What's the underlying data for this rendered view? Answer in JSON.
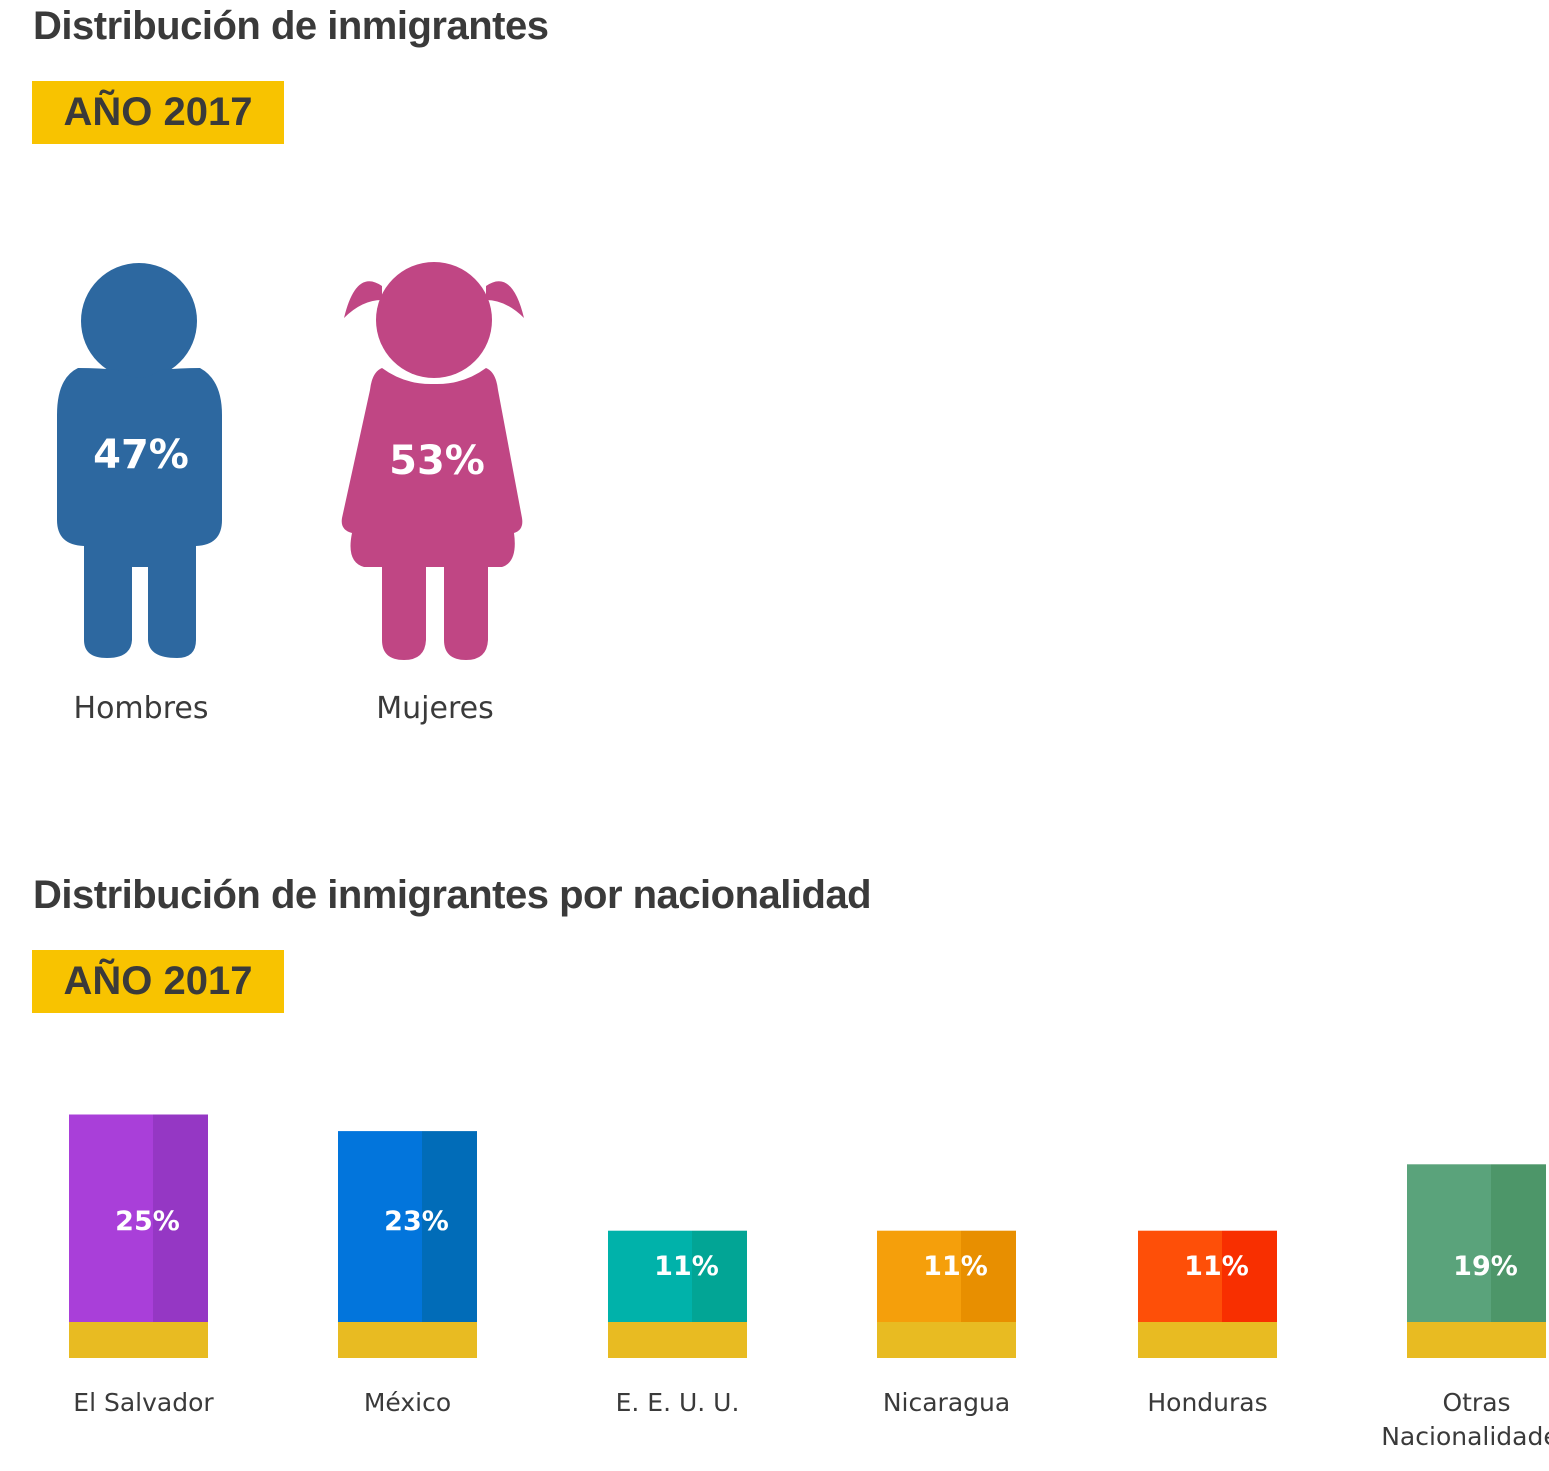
{
  "section1": {
    "title": "Distribución de inmigrantes",
    "year_badge": "AÑO 2017"
  },
  "section2": {
    "title": "Distribución de inmigrantes por nacionalidad",
    "year_badge": "AÑO 2017"
  },
  "chart_data": [
    {
      "type": "pictogram",
      "title": "Distribución de inmigrantes",
      "categories": [
        "Hombres",
        "Mujeres"
      ],
      "values": [
        47,
        53
      ],
      "labels": [
        "47%",
        "53%"
      ],
      "icons": [
        "boy-figure-icon",
        "girl-figure-icon"
      ],
      "colors": [
        "#2d68a0",
        "#c04684"
      ]
    },
    {
      "type": "bar",
      "title": "Distribución de inmigrantes por nacionalidad",
      "categories": [
        "El Salvador",
        "México",
        "E. E. U. U.",
        "Nicaragua",
        "Honduras",
        "Otras Nacionalidades"
      ],
      "values": [
        25,
        23,
        11,
        11,
        11,
        19
      ],
      "labels": [
        "25%",
        "23%",
        "11%",
        "11%",
        "11%",
        "19%"
      ],
      "colors": [
        "#a93fd9",
        "#0275dc",
        "#00b2aa",
        "#f59f0b",
        "#fe4f08",
        "#5aa37b"
      ],
      "shade_colors": [
        "#9537c4",
        "#016cb8",
        "#02a595",
        "#e88f00",
        "#f82f00",
        "#4d9669"
      ],
      "base_color": "#e8bb22"
    }
  ]
}
